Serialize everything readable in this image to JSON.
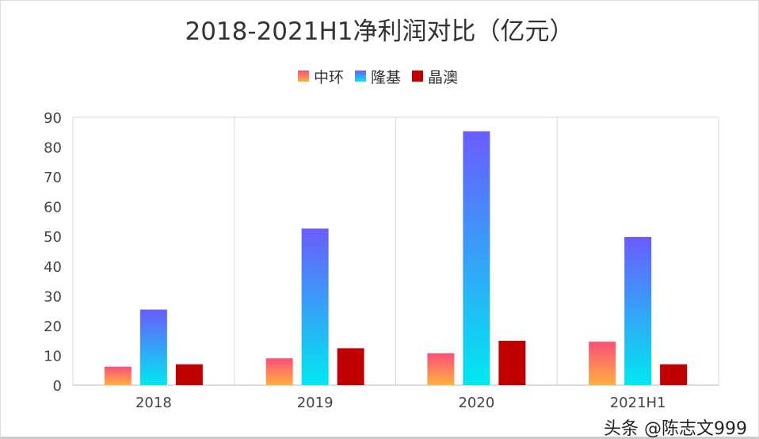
{
  "chart_data": {
    "type": "bar",
    "title": "2018-2021H1净利润对比（亿元）",
    "categories": [
      "2018",
      "2019",
      "2020",
      "2021H1"
    ],
    "series": [
      {
        "name": "中环",
        "values": [
          6.2,
          9.0,
          10.7,
          14.6
        ],
        "colors": [
          "#ffb040",
          "#f9507a"
        ]
      },
      {
        "name": "隆基",
        "values": [
          25.4,
          52.6,
          85.3,
          49.8
        ],
        "colors": [
          "#00e8f0",
          "#6a5cff"
        ]
      },
      {
        "name": "晶澳",
        "values": [
          7.0,
          12.4,
          14.9,
          7.0
        ],
        "colors": [
          "#c00000",
          "#c00000"
        ]
      }
    ],
    "ylim": [
      0,
      90
    ],
    "yticks": [
      0,
      10,
      20,
      30,
      40,
      50,
      60,
      70,
      80,
      90
    ],
    "xlabel": "",
    "ylabel": "",
    "legend": "top-center",
    "grid": false
  },
  "watermark": "头条 @陈志文999"
}
